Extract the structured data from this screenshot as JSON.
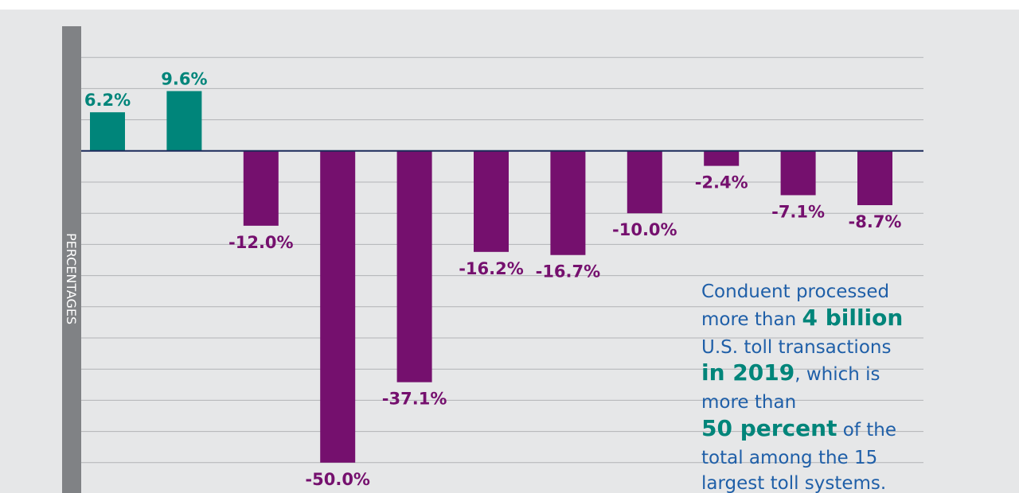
{
  "chart_data": {
    "type": "bar",
    "y_axis_label": "PERCENTAGES",
    "values": [
      6.2,
      9.6,
      -12.0,
      -50.0,
      -37.1,
      -16.2,
      -16.7,
      -10.0,
      -2.4,
      -7.1,
      -8.7
    ],
    "value_labels": [
      "6.2%",
      "9.6%",
      "-12.0%",
      "-50.0%",
      "-37.1%",
      "-16.2%",
      "-16.7%",
      "-10.0%",
      "-2.4%",
      "-7.1%",
      "-8.7%"
    ],
    "positive_color": "#00857a",
    "negative_color": "#75106e",
    "ylim": [
      -55,
      20
    ],
    "yticks": [
      15,
      10,
      5,
      0,
      -5,
      -10,
      -15,
      -20,
      -25,
      -30,
      -35,
      -40,
      -45,
      -50,
      -55
    ],
    "grid": true,
    "annotation": [
      [
        {
          "text": "Conduent processed"
        }
      ],
      [
        {
          "text": "more than "
        },
        {
          "text": "4 billion",
          "emphasis": true
        }
      ],
      [
        {
          "text": "U.S. toll transactions"
        }
      ],
      [
        {
          "text": "in 2019",
          "emphasis": true
        },
        {
          "text": ", which is"
        }
      ],
      [
        {
          "text": "more than"
        }
      ],
      [
        {
          "text": "50 percent",
          "emphasis": true
        },
        {
          "text": " of the"
        }
      ],
      [
        {
          "text": "total among the 15"
        }
      ],
      [
        {
          "text": "largest toll systems."
        }
      ]
    ]
  }
}
